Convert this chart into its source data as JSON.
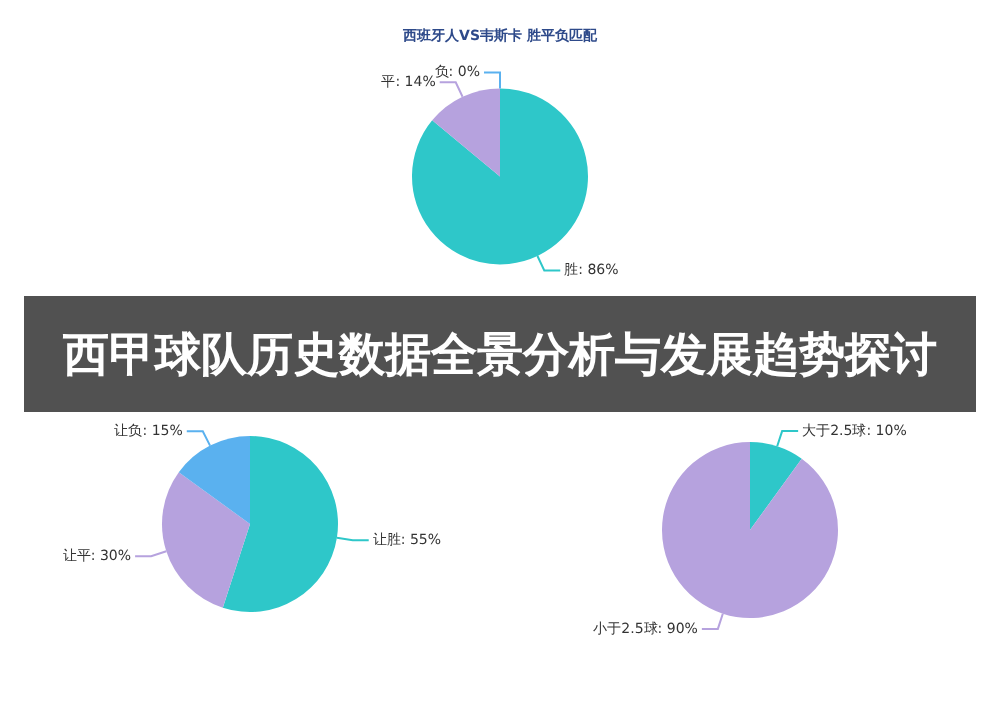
{
  "chart_data": [
    {
      "type": "pie",
      "title": "西班牙人VS韦斯卡 胜平负匹配",
      "categories": [
        "胜",
        "平",
        "负"
      ],
      "values": [
        86,
        14,
        0
      ],
      "colors": [
        "#2ec7c9",
        "#b6a2de",
        "#5ab1ef"
      ],
      "value_labels": [
        "86%",
        "14%",
        "0%"
      ],
      "annotations": [
        "西甲球队历史数据全景分析与发展趋势探讨"
      ]
    },
    {
      "type": "pie",
      "categories": [
        "让胜",
        "让平",
        "让负"
      ],
      "values": [
        55,
        30,
        15
      ],
      "colors": [
        "#2ec7c9",
        "#b6a2de",
        "#5ab1ef"
      ],
      "value_labels": [
        "55%",
        "30%",
        "15%"
      ]
    },
    {
      "type": "pie",
      "categories": [
        "大于2.5球",
        "小于2.5球"
      ],
      "values": [
        10,
        90
      ],
      "colors": [
        "#2ec7c9",
        "#b6a2de"
      ],
      "value_labels": [
        "10%",
        "90%"
      ]
    }
  ]
}
